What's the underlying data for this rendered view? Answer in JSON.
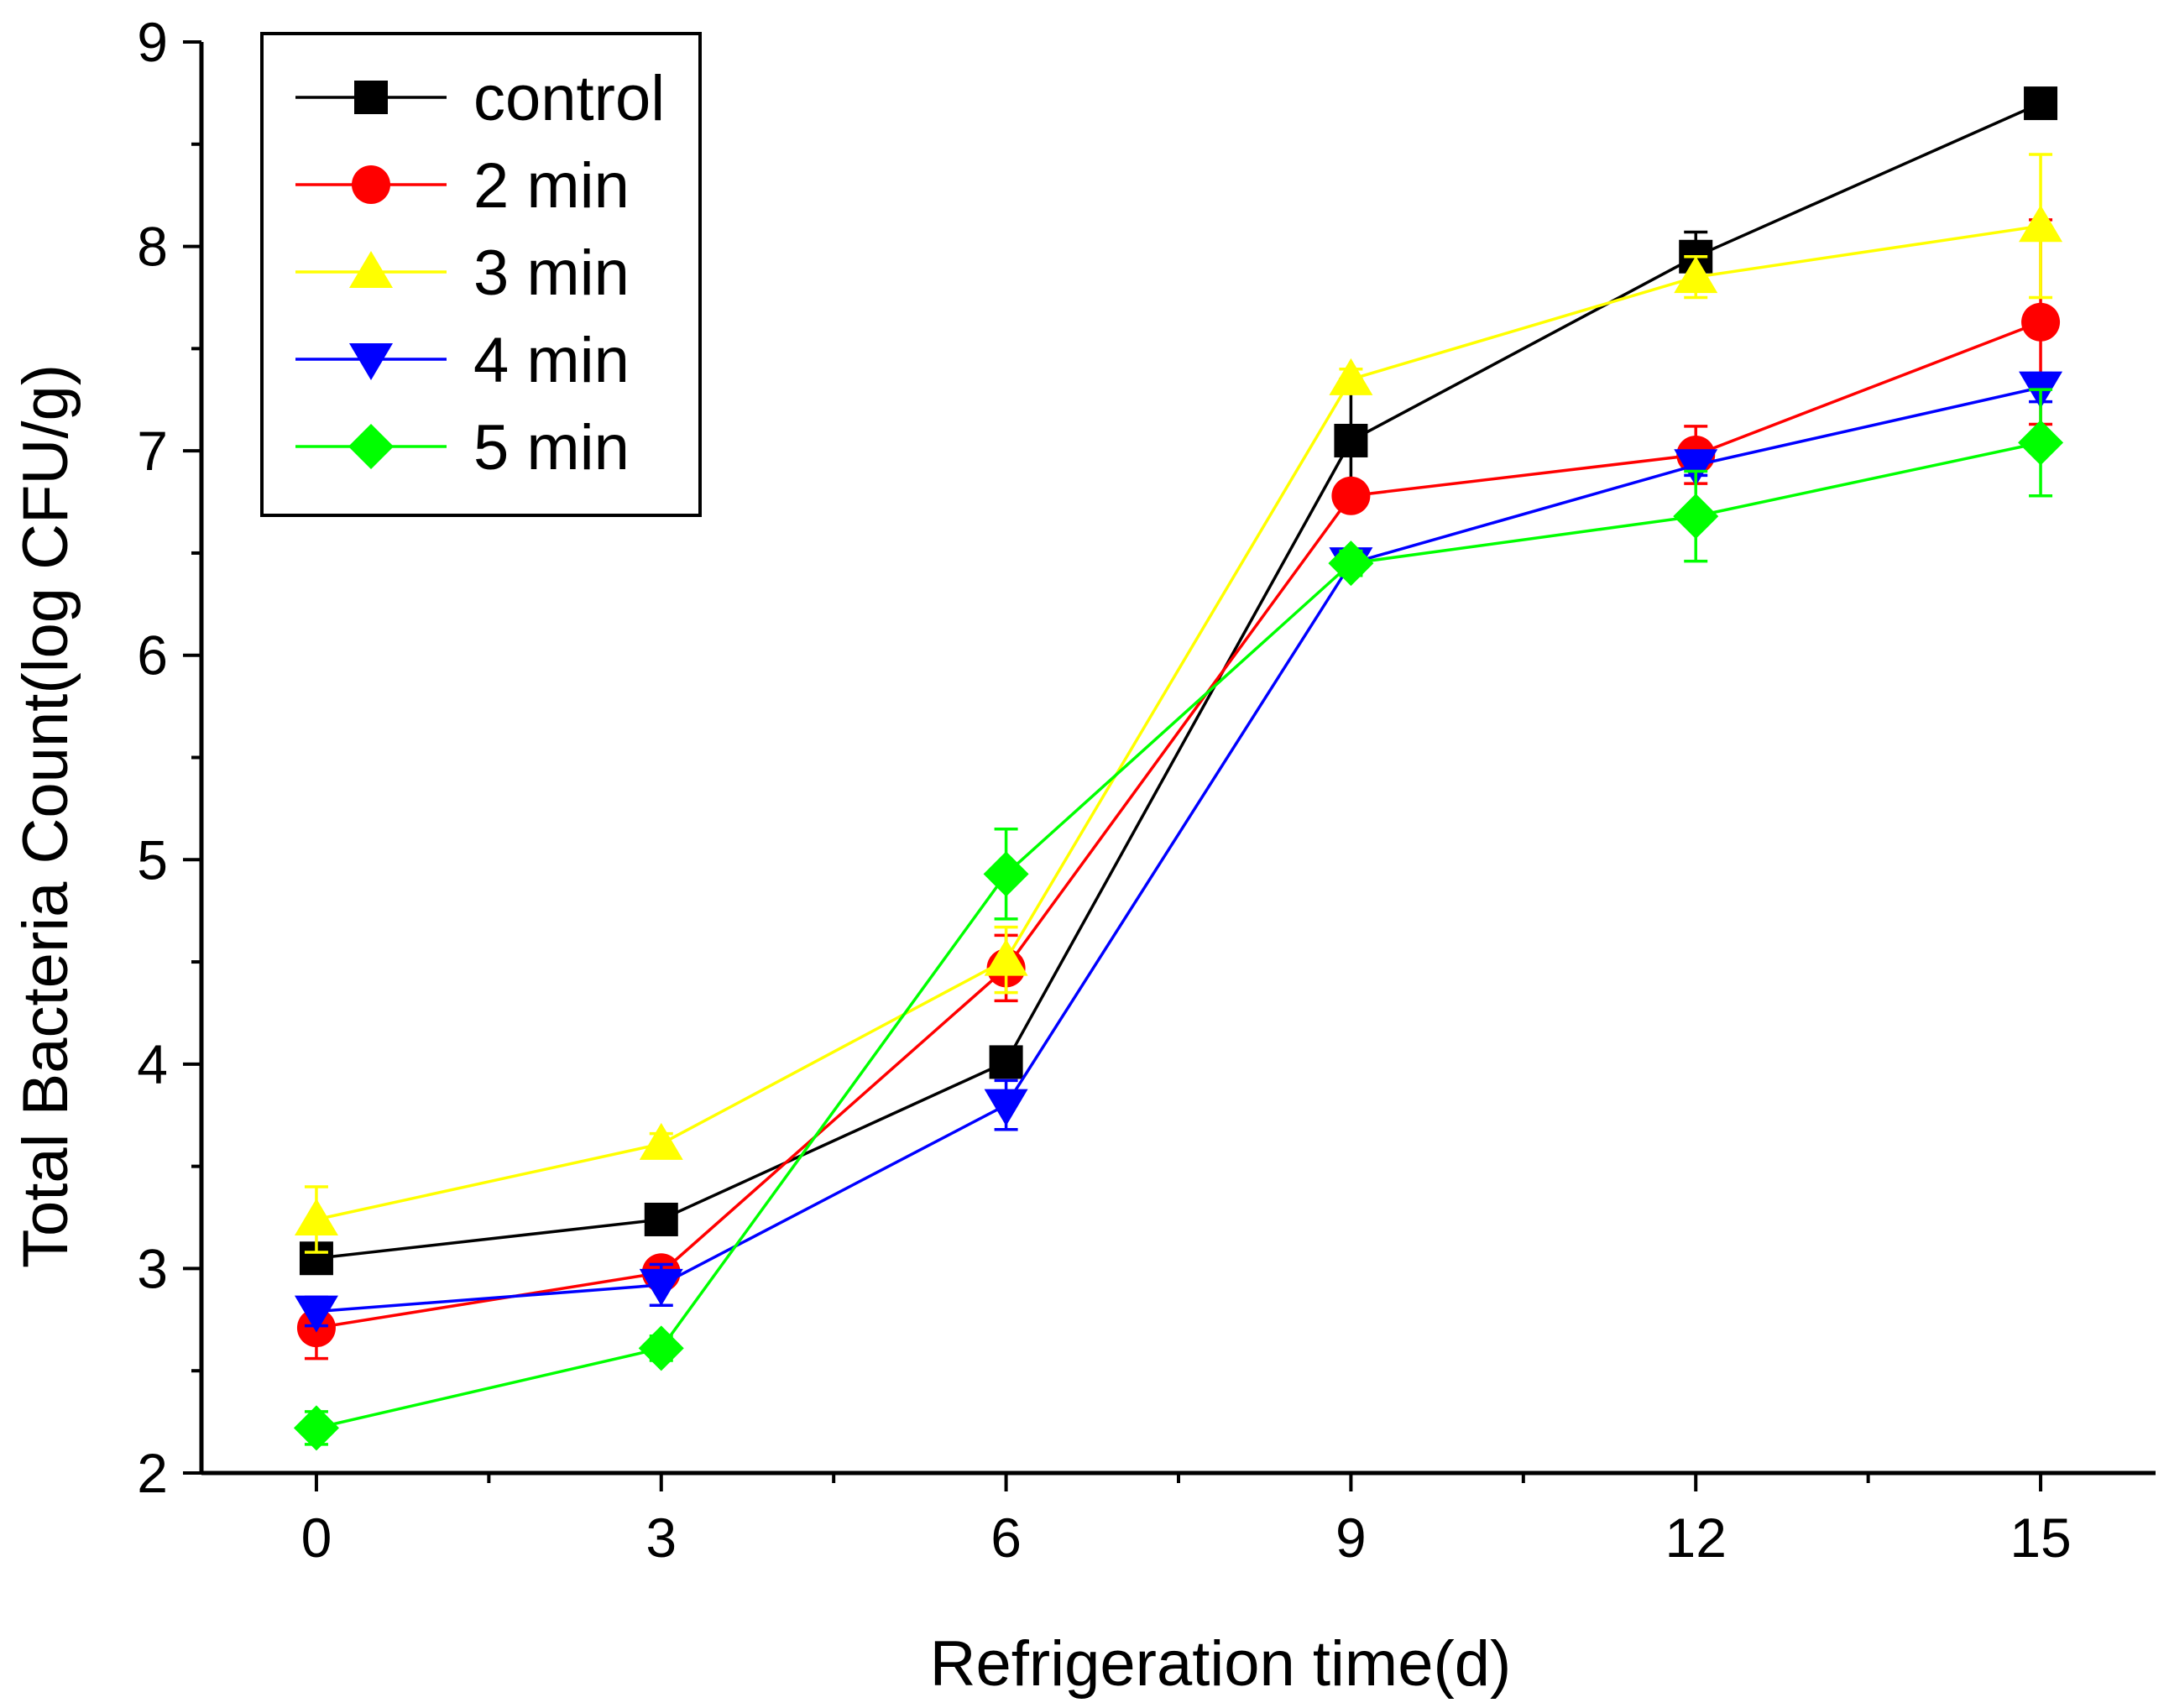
{
  "chart_data": {
    "type": "line",
    "title": "",
    "xlabel": "Refrigeration time(d)",
    "ylabel": "Total Bacteria Count(log CFU/g)",
    "x": [
      0,
      3,
      6,
      9,
      12,
      15
    ],
    "xlim": [
      -1,
      16
    ],
    "ylim": [
      2,
      9
    ],
    "xticks": [
      0,
      3,
      6,
      9,
      12,
      15
    ],
    "xtick_labels": [
      "0",
      "3",
      "6",
      "9",
      "12",
      "15"
    ],
    "yticks": [
      2,
      3,
      4,
      5,
      6,
      7,
      8,
      9
    ],
    "ytick_labels": [
      "2",
      "3",
      "4",
      "5",
      "6",
      "7",
      "8",
      "9"
    ],
    "grid": false,
    "legend_position": "top-left",
    "series": [
      {
        "name": "control",
        "color": "#000000",
        "marker": "square",
        "values": [
          3.05,
          3.24,
          4.01,
          7.05,
          7.95,
          8.7
        ],
        "errors": [
          0.05,
          0.04,
          0.05,
          0.3,
          0.12,
          0.04
        ]
      },
      {
        "name": "2 min",
        "color": "#ff0000",
        "marker": "circle",
        "values": [
          2.71,
          2.98,
          4.47,
          6.78,
          6.98,
          7.63
        ],
        "errors": [
          0.15,
          0.06,
          0.16,
          0.06,
          0.14,
          0.5
        ]
      },
      {
        "name": "3 min",
        "color": "#ffff00",
        "marker": "triangle-up",
        "values": [
          3.24,
          3.61,
          4.51,
          7.35,
          7.85,
          8.1
        ],
        "errors": [
          0.16,
          0.05,
          0.16,
          0.05,
          0.1,
          0.35
        ]
      },
      {
        "name": "4 min",
        "color": "#0000ff",
        "marker": "triangle-down",
        "values": [
          2.79,
          2.92,
          3.8,
          6.45,
          6.93,
          7.31
        ],
        "errors": [
          0.07,
          0.1,
          0.12,
          0.05,
          0.05,
          0.07
        ]
      },
      {
        "name": "5 min",
        "color": "#00ff00",
        "marker": "diamond",
        "values": [
          2.22,
          2.61,
          4.93,
          6.45,
          6.68,
          7.04
        ],
        "errors": [
          0.08,
          0.06,
          0.22,
          0.06,
          0.22,
          0.26
        ]
      }
    ]
  }
}
